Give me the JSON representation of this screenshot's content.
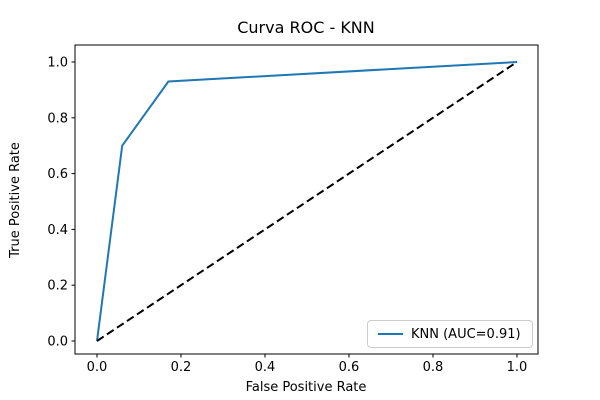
{
  "figure": {
    "background": "#ffffff"
  },
  "chart_data": {
    "type": "line",
    "title": "Curva ROC - KNN",
    "xlabel": "False Positive Rate",
    "ylabel": "True Positive Rate",
    "xlim": [
      0.0,
      1.0
    ],
    "ylim": [
      0.0,
      1.0
    ],
    "xticks": [
      0.0,
      0.2,
      0.4,
      0.6,
      0.8,
      1.0
    ],
    "yticks": [
      0.0,
      0.2,
      0.4,
      0.6,
      0.8,
      1.0
    ],
    "grid": false,
    "axis_color": "#000000",
    "legend": {
      "position": "lower right",
      "entries": [
        {
          "label": "KNN (AUC=0.91)",
          "color": "#1f77b4",
          "style": "solid"
        }
      ]
    },
    "series": [
      {
        "name": "KNN ROC curve",
        "color": "#1f77b4",
        "style": "solid",
        "in_legend": true,
        "x": [
          0.0,
          0.06,
          0.17,
          1.0
        ],
        "y": [
          0.0,
          0.7,
          0.93,
          1.0
        ]
      },
      {
        "name": "chance diagonal",
        "color": "#000000",
        "style": "dashed",
        "in_legend": false,
        "x": [
          0.0,
          1.0
        ],
        "y": [
          0.0,
          1.0
        ]
      }
    ]
  }
}
